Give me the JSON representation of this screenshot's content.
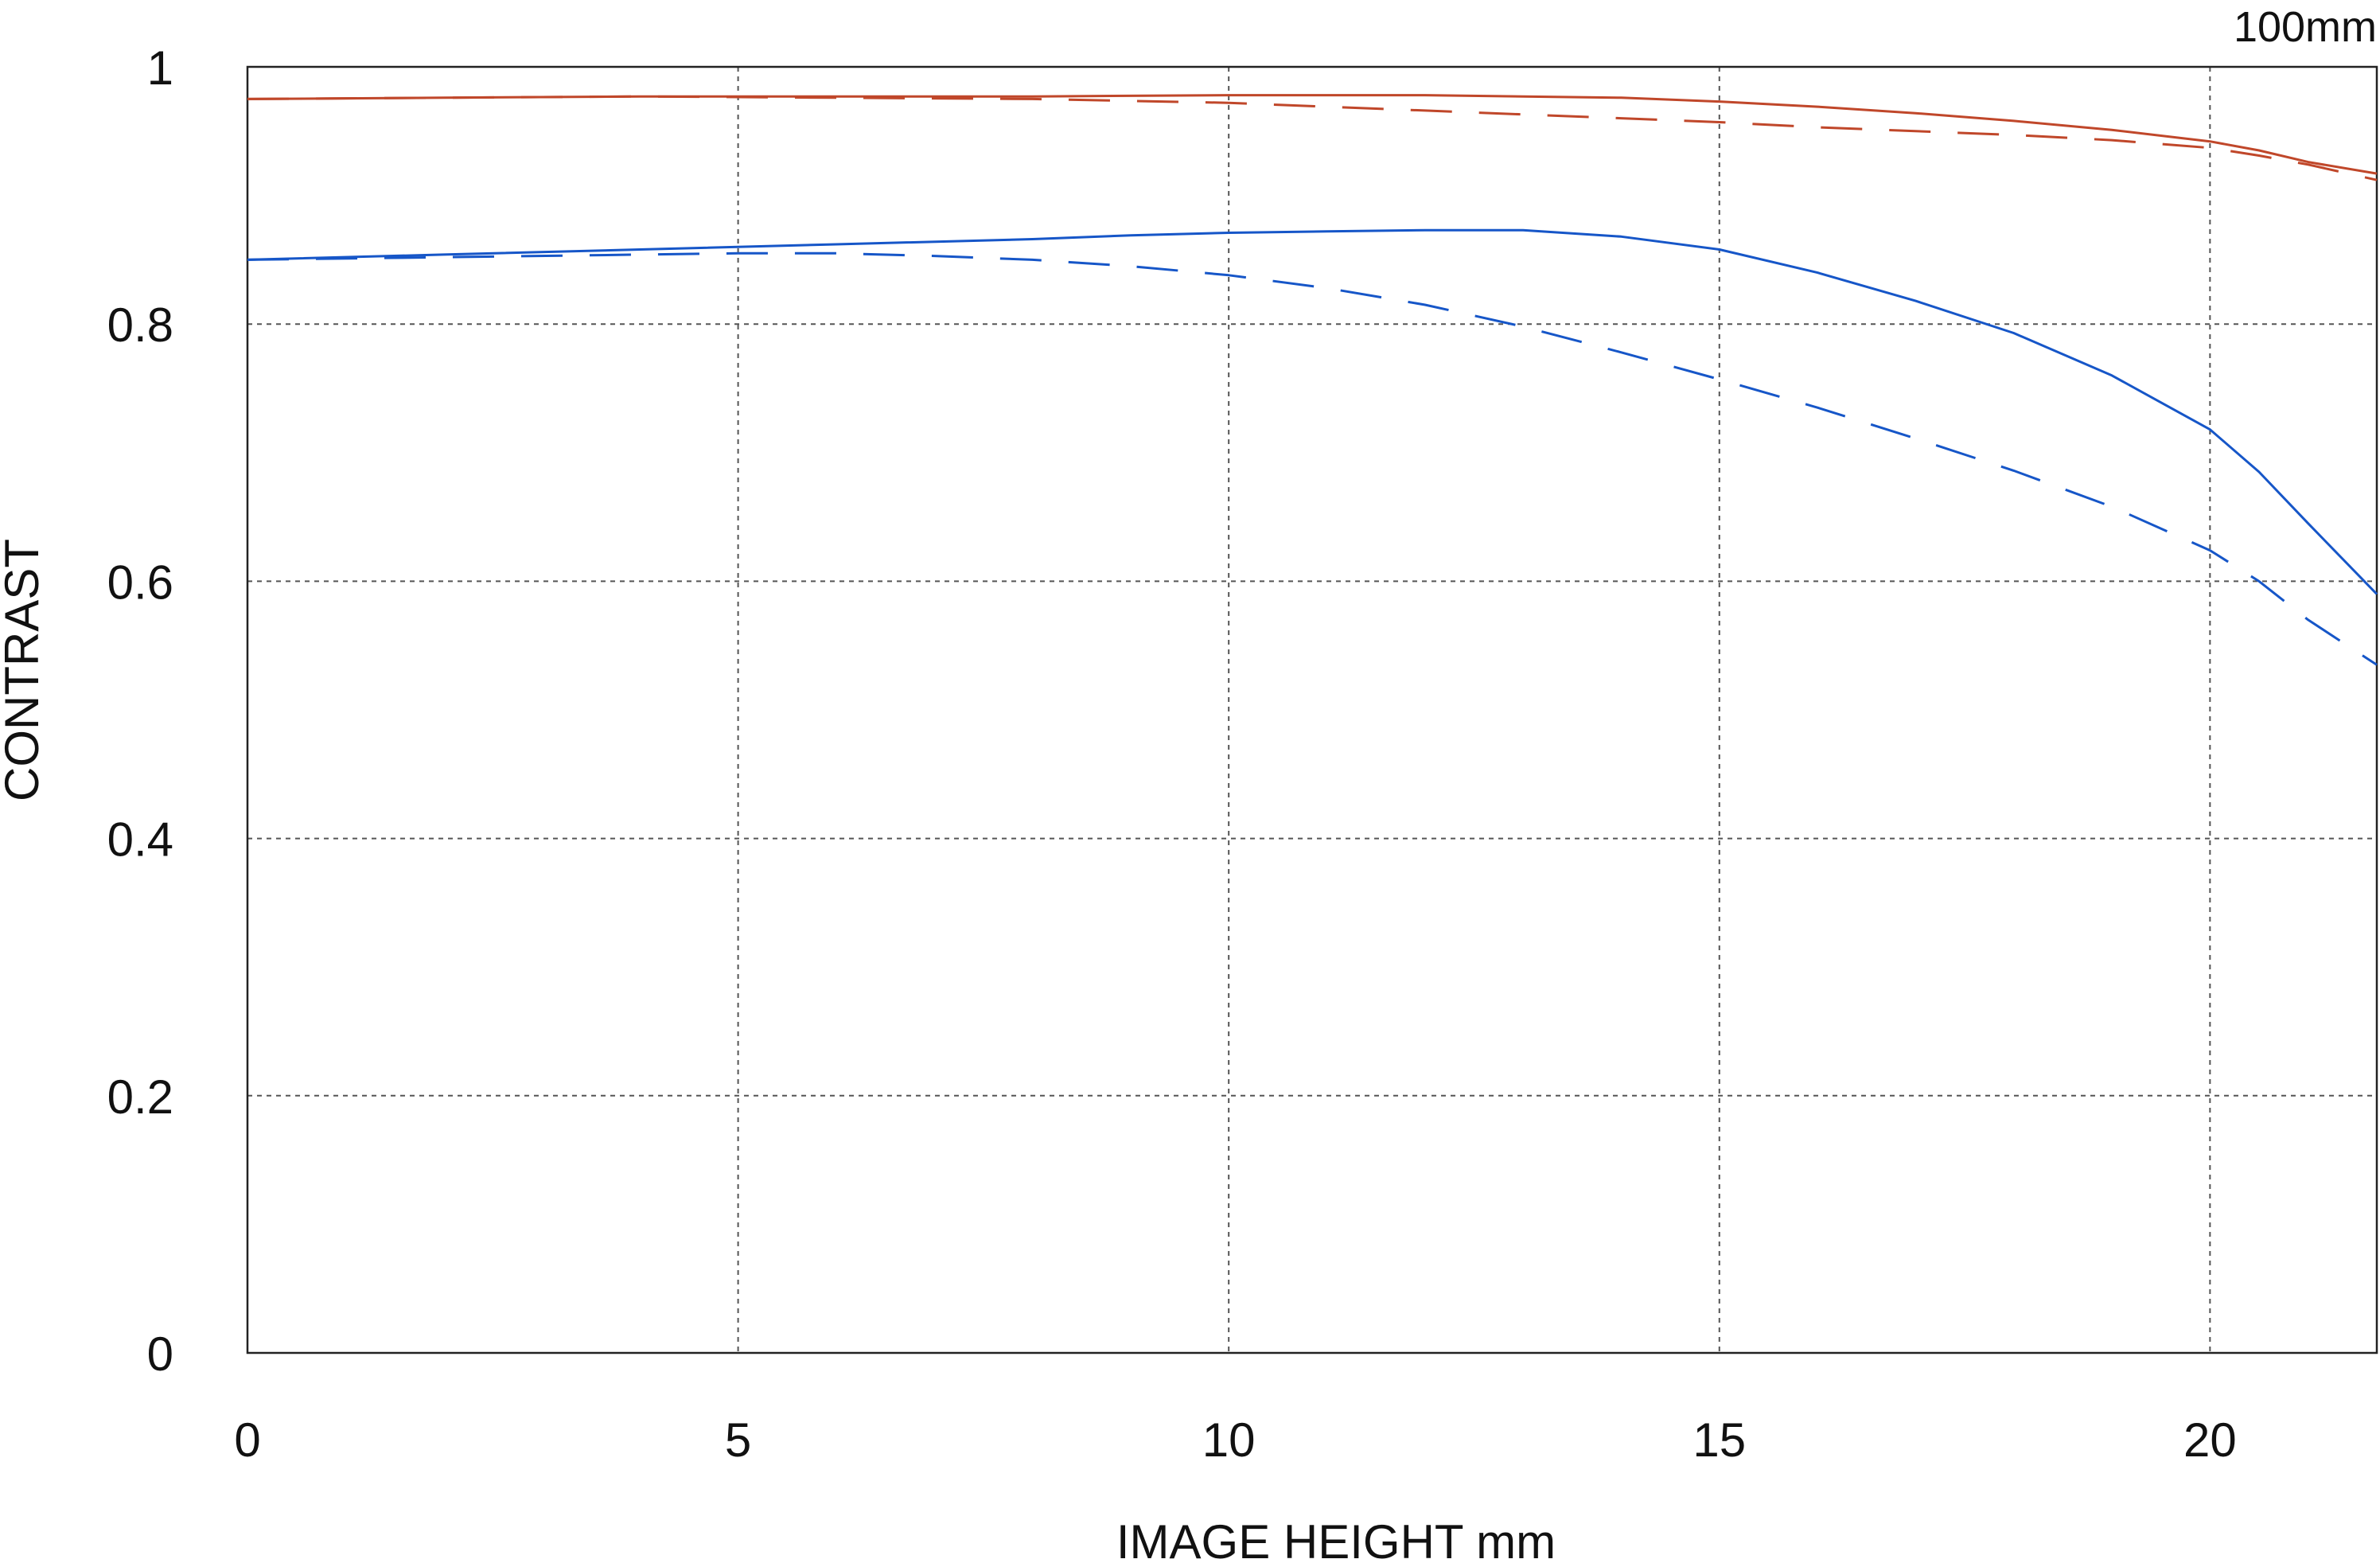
{
  "chart_data": {
    "type": "line",
    "title": "",
    "corner_label": "100mm",
    "xlabel": "IMAGE HEIGHT  mm",
    "ylabel": "CONTRAST",
    "xlim": [
      0,
      21.7
    ],
    "ylim": [
      0,
      1
    ],
    "x_ticks": [
      0,
      5,
      10,
      15,
      20
    ],
    "x_tick_labels": [
      "0",
      "5",
      "10",
      "15",
      "20"
    ],
    "y_ticks": [
      0,
      0.2,
      0.4,
      0.6,
      0.8,
      1
    ],
    "y_tick_labels": [
      "0",
      "0.2",
      "0.4",
      "0.6",
      "0.8",
      "1"
    ],
    "grid": true,
    "colors": {
      "red": "#c0472a",
      "blue": "#1656c8",
      "grid": "#555555",
      "frame": "#222222"
    },
    "series": [
      {
        "color": "#c0472a",
        "dash": "solid",
        "x": [
          0,
          2,
          4,
          6,
          8,
          10,
          11,
          12,
          13,
          14,
          15,
          16,
          17,
          18,
          19,
          20,
          20.5,
          21,
          21.7
        ],
        "y": [
          0.975,
          0.976,
          0.977,
          0.977,
          0.977,
          0.978,
          0.978,
          0.978,
          0.977,
          0.976,
          0.973,
          0.969,
          0.964,
          0.958,
          0.951,
          0.942,
          0.935,
          0.926,
          0.917
        ]
      },
      {
        "color": "#c0472a",
        "dash": "dashed",
        "x": [
          0,
          2,
          4,
          6,
          8,
          10,
          11,
          12,
          13,
          14,
          15,
          16,
          17,
          18,
          19,
          20,
          20.5,
          21,
          21.7
        ],
        "y": [
          0.975,
          0.976,
          0.977,
          0.976,
          0.975,
          0.972,
          0.969,
          0.966,
          0.963,
          0.96,
          0.957,
          0.953,
          0.95,
          0.947,
          0.943,
          0.937,
          0.931,
          0.924,
          0.912
        ]
      },
      {
        "color": "#1656c8",
        "dash": "solid",
        "x": [
          0,
          2,
          4,
          6,
          8,
          9,
          10,
          11,
          12,
          13,
          14,
          15,
          16,
          17,
          18,
          19,
          20,
          20.5,
          21,
          21.7
        ],
        "y": [
          0.85,
          0.854,
          0.858,
          0.862,
          0.866,
          0.869,
          0.871,
          0.872,
          0.873,
          0.873,
          0.868,
          0.858,
          0.84,
          0.818,
          0.793,
          0.76,
          0.718,
          0.685,
          0.645,
          0.59
        ]
      },
      {
        "color": "#1656c8",
        "dash": "dashed",
        "x": [
          0,
          2,
          4,
          5,
          6,
          7,
          8,
          9,
          10,
          11,
          12,
          13,
          14,
          15,
          16,
          17,
          18,
          19,
          20,
          20.5,
          21,
          21.7
        ],
        "y": [
          0.85,
          0.852,
          0.854,
          0.855,
          0.855,
          0.853,
          0.85,
          0.845,
          0.838,
          0.828,
          0.815,
          0.798,
          0.778,
          0.757,
          0.735,
          0.711,
          0.686,
          0.658,
          0.624,
          0.6,
          0.57,
          0.535
        ]
      }
    ]
  }
}
